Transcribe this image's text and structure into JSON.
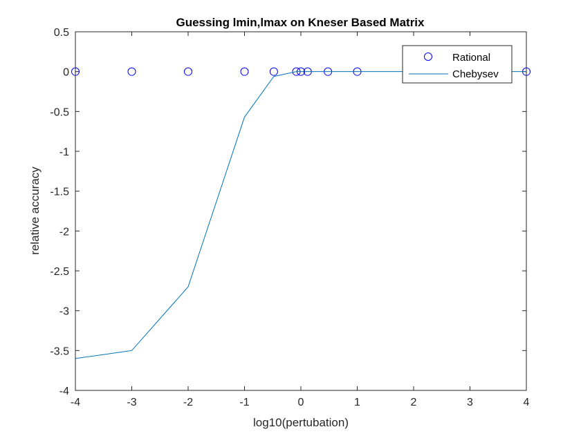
{
  "chart_data": {
    "type": "line",
    "title": "Guessing lmin,lmax on Kneser Based Matrix",
    "xlabel": "log10(pertubation)",
    "ylabel": "relative accuracy",
    "xlim": [
      -4,
      4
    ],
    "ylim": [
      -4,
      0.5
    ],
    "xticks": [
      "-4",
      "-3",
      "-2",
      "-1",
      "0",
      "1",
      "2",
      "3",
      "4"
    ],
    "yticks": [
      "0.5",
      "0",
      "-0.5",
      "-1",
      "-1.5",
      "-2",
      "-2.5",
      "-3",
      "-3.5",
      "-4"
    ],
    "grid": false,
    "legend_position": "top-right",
    "series": [
      {
        "name": "Rational",
        "style": "markers",
        "color": "#0000ff",
        "x": [
          -4,
          -3,
          -2,
          -1,
          -0.48,
          -0.08,
          0,
          0.12,
          0.48,
          1,
          4
        ],
        "y": [
          0,
          0,
          0,
          0,
          0,
          0,
          0,
          0,
          0,
          0,
          0
        ]
      },
      {
        "name": "Chebysev",
        "style": "line",
        "color": "#0072bd",
        "x": [
          -4,
          -3,
          -2,
          -1,
          -0.48,
          -0.08,
          0,
          0.12,
          0.48,
          1,
          4
        ],
        "y": [
          -3.6,
          -3.5,
          -2.7,
          -0.57,
          -0.06,
          0,
          0,
          0,
          0,
          0,
          0
        ]
      }
    ]
  }
}
